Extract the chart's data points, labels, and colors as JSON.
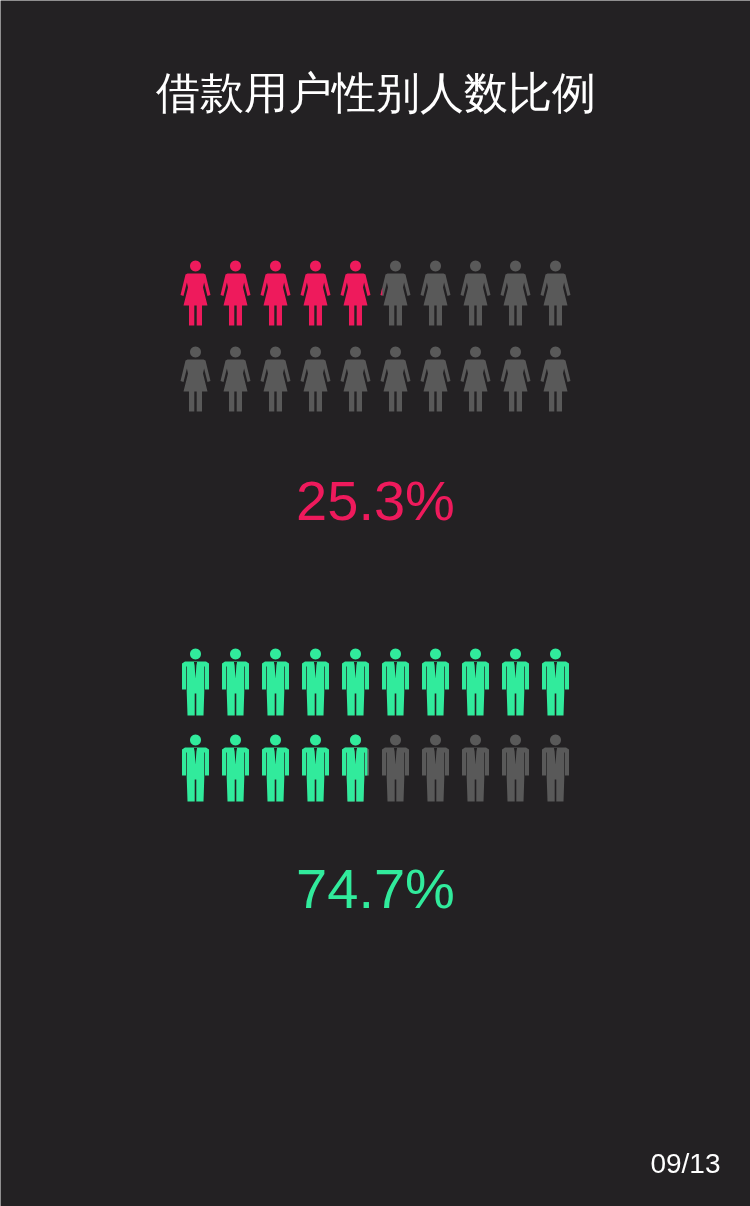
{
  "chart_data": {
    "type": "other",
    "title": "借款用户性别人数比例",
    "categories": [
      null,
      null
    ],
    "values": [
      25.3,
      74.7
    ],
    "colors": [
      "#ee1a5c",
      "#31eb9c"
    ],
    "value_labels": [
      "25.3%",
      "74.7%"
    ],
    "annotations": [
      "09/13"
    ]
  }
}
